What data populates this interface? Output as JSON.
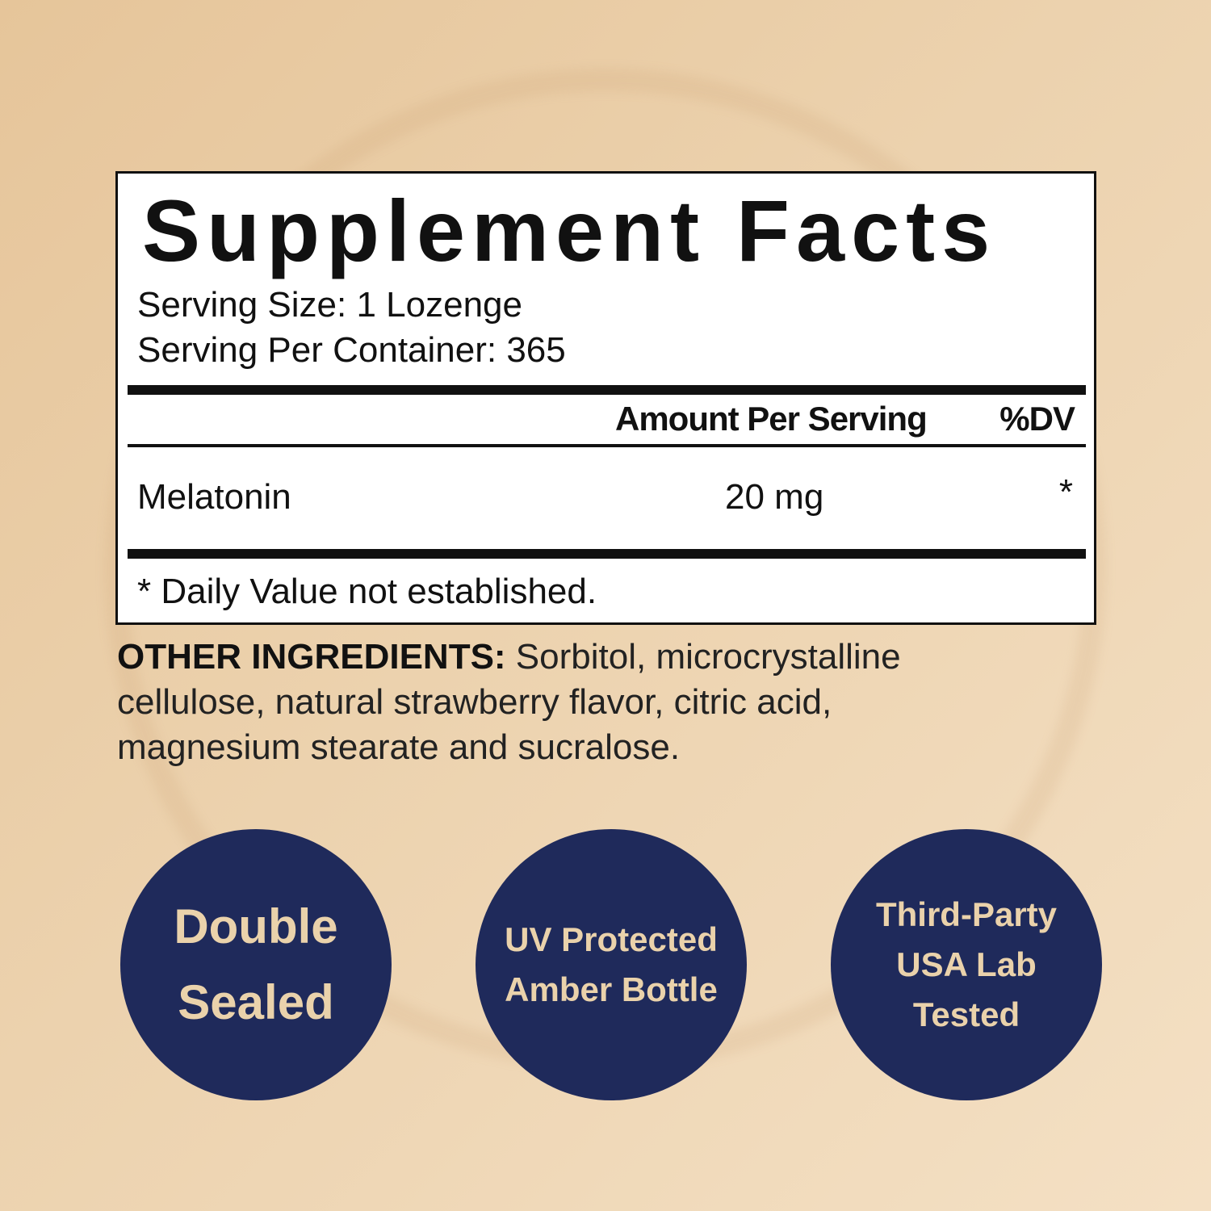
{
  "facts": {
    "title": "Supplement Facts",
    "serving_size": "Serving Size: 1 Lozenge",
    "servings_per_container": "Serving Per Container: 365",
    "col_amount": "Amount Per Serving",
    "col_dv": "%DV",
    "rows": [
      {
        "name": "Melatonin",
        "amount": "20 mg",
        "dv": "*"
      }
    ],
    "footnote": "* Daily Value not established."
  },
  "other_ingredients": {
    "label": "OTHER INGREDIENTS:",
    "text": " Sorbitol, microcrystalline cellulose, natural strawberry flavor, citric acid, magnesium stearate and sucralose."
  },
  "badges": [
    {
      "lines": [
        "Double",
        "Sealed"
      ]
    },
    {
      "lines": [
        "UV Protected",
        "Amber Bottle"
      ]
    },
    {
      "lines": [
        "Third-Party",
        "USA Lab",
        "Tested"
      ]
    }
  ],
  "colors": {
    "badge_bg": "#1f2a5b",
    "badge_text": "#ead2ab",
    "background": "#ecd2ae"
  }
}
